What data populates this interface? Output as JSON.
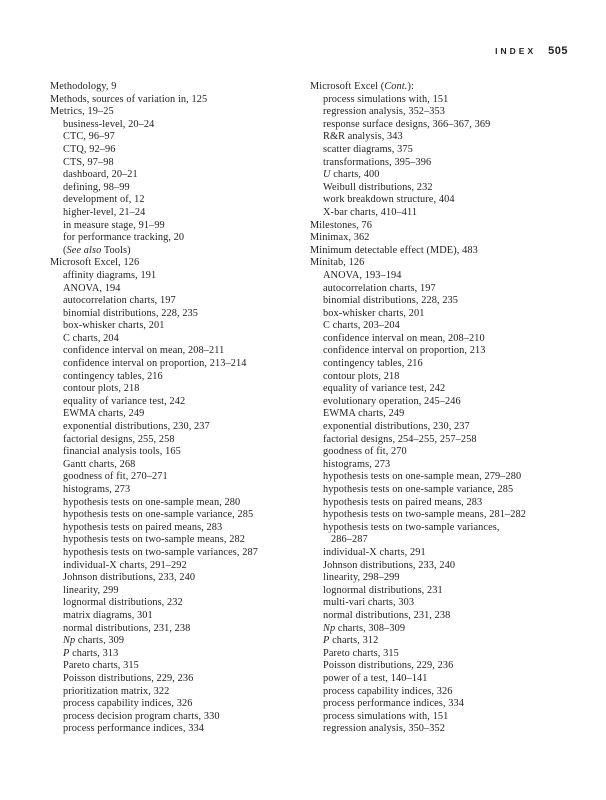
{
  "header": {
    "label": "INDEX",
    "page_number": "505"
  },
  "colors": {
    "text": "#1f1f1f",
    "background": "#ffffff"
  },
  "index": {
    "columns": [
      {
        "entries": [
          {
            "indent": 0,
            "text": "Methodology, 9"
          },
          {
            "indent": 0,
            "text": "Methods, sources of variation in, 125"
          },
          {
            "indent": 0,
            "text": "Metrics, 19–25"
          },
          {
            "indent": 1,
            "text": "business-level, 20–24"
          },
          {
            "indent": 1,
            "text": "CTC, 96–97"
          },
          {
            "indent": 1,
            "text": "CTQ, 92–96"
          },
          {
            "indent": 1,
            "text": "CTS, 97–98"
          },
          {
            "indent": 1,
            "text": "dashboard, 20–21"
          },
          {
            "indent": 1,
            "text": "defining, 98–99"
          },
          {
            "indent": 1,
            "text": "development of, 12"
          },
          {
            "indent": 1,
            "text": "higher-level, 21–24"
          },
          {
            "indent": 1,
            "text": "in measure stage, 91–99"
          },
          {
            "indent": 1,
            "text": "for performance tracking, 20"
          },
          {
            "indent": 1,
            "text": "(*See also* Tools)"
          },
          {
            "indent": 0,
            "text": "Microsoft Excel, 126"
          },
          {
            "indent": 1,
            "text": "affinity diagrams, 191"
          },
          {
            "indent": 1,
            "text": "ANOVA, 194"
          },
          {
            "indent": 1,
            "text": "autocorrelation charts, 197"
          },
          {
            "indent": 1,
            "text": "binomial distributions, 228, 235"
          },
          {
            "indent": 1,
            "text": "box-whisker charts, 201"
          },
          {
            "indent": 1,
            "text": "C charts, 204"
          },
          {
            "indent": 1,
            "text": "confidence interval on mean, 208–211"
          },
          {
            "indent": 1,
            "text": "confidence interval on proportion, 213–214"
          },
          {
            "indent": 1,
            "text": "contingency tables, 216"
          },
          {
            "indent": 1,
            "text": "contour plots, 218"
          },
          {
            "indent": 1,
            "text": "equality of variance test, 242"
          },
          {
            "indent": 1,
            "text": "EWMA charts, 249"
          },
          {
            "indent": 1,
            "text": "exponential distributions, 230, 237"
          },
          {
            "indent": 1,
            "text": "factorial designs, 255, 258"
          },
          {
            "indent": 1,
            "text": "financial analysis tools, 165"
          },
          {
            "indent": 1,
            "text": "Gantt charts, 268"
          },
          {
            "indent": 1,
            "text": "goodness of fit, 270–271"
          },
          {
            "indent": 1,
            "text": "histograms, 273"
          },
          {
            "indent": 1,
            "text": "hypothesis tests on one-sample mean, 280"
          },
          {
            "indent": 1,
            "text": "hypothesis tests on one-sample variance, 285"
          },
          {
            "indent": 1,
            "text": "hypothesis tests on paired means, 283"
          },
          {
            "indent": 1,
            "text": "hypothesis tests on two-sample means, 282"
          },
          {
            "indent": 1,
            "text": "hypothesis tests on two-sample variances, 287"
          },
          {
            "indent": 1,
            "text": "individual-X charts, 291–292"
          },
          {
            "indent": 1,
            "text": "Johnson distributions, 233, 240"
          },
          {
            "indent": 1,
            "text": "linearity, 299"
          },
          {
            "indent": 1,
            "text": "lognormal distributions, 232"
          },
          {
            "indent": 1,
            "text": "matrix diagrams, 301"
          },
          {
            "indent": 1,
            "text": "normal distributions, 231, 238"
          },
          {
            "indent": 1,
            "text": "*Np* charts, 309"
          },
          {
            "indent": 1,
            "text": "*P* charts, 313"
          },
          {
            "indent": 1,
            "text": "Pareto charts, 315"
          },
          {
            "indent": 1,
            "text": "Poisson distributions, 229, 236"
          },
          {
            "indent": 1,
            "text": "prioritization matrix, 322"
          },
          {
            "indent": 1,
            "text": "process capability indices, 326"
          },
          {
            "indent": 1,
            "text": "process decision program charts, 330"
          },
          {
            "indent": 1,
            "text": "process performance indices, 334"
          }
        ]
      },
      {
        "entries": [
          {
            "indent": 0,
            "text": "Microsoft Excel (*Cont.*):"
          },
          {
            "indent": 1,
            "text": "process simulations with, 151"
          },
          {
            "indent": 1,
            "text": "regression analysis, 352–353"
          },
          {
            "indent": 1,
            "text": "response surface designs, 366–367, 369"
          },
          {
            "indent": 1,
            "text": "R&R analysis, 343"
          },
          {
            "indent": 1,
            "text": "scatter diagrams, 375"
          },
          {
            "indent": 1,
            "text": "transformations, 395–396"
          },
          {
            "indent": 1,
            "text": "*U* charts, 400"
          },
          {
            "indent": 1,
            "text": "Weibull distributions, 232"
          },
          {
            "indent": 1,
            "text": "work breakdown structure, 404"
          },
          {
            "indent": 1,
            "text": "X-bar charts, 410–411"
          },
          {
            "indent": 0,
            "text": "Milestones, 76"
          },
          {
            "indent": 0,
            "text": "Minimax, 362"
          },
          {
            "indent": 0,
            "text": "Minimum detectable effect (MDE), 483"
          },
          {
            "indent": 0,
            "text": "Minitab, 126"
          },
          {
            "indent": 1,
            "text": "ANOVA, 193–194"
          },
          {
            "indent": 1,
            "text": "autocorrelation charts, 197"
          },
          {
            "indent": 1,
            "text": "binomial distributions, 228, 235"
          },
          {
            "indent": 1,
            "text": "box-whisker charts, 201"
          },
          {
            "indent": 1,
            "text": "C charts, 203–204"
          },
          {
            "indent": 1,
            "text": "confidence interval on mean, 208–210"
          },
          {
            "indent": 1,
            "text": "confidence interval on proportion, 213"
          },
          {
            "indent": 1,
            "text": "contingency tables, 216"
          },
          {
            "indent": 1,
            "text": "contour plots, 218"
          },
          {
            "indent": 1,
            "text": "equality of variance test, 242"
          },
          {
            "indent": 1,
            "text": "evolutionary operation, 245–246"
          },
          {
            "indent": 1,
            "text": "EWMA charts, 249"
          },
          {
            "indent": 1,
            "text": "exponential distributions, 230, 237"
          },
          {
            "indent": 1,
            "text": "factorial designs, 254–255, 257–258"
          },
          {
            "indent": 1,
            "text": "goodness of fit, 270"
          },
          {
            "indent": 1,
            "text": "histograms, 273"
          },
          {
            "indent": 1,
            "text": "hypothesis tests on one-sample mean, 279–280"
          },
          {
            "indent": 1,
            "text": "hypothesis tests on one-sample variance, 285"
          },
          {
            "indent": 1,
            "text": "hypothesis tests on paired means, 283"
          },
          {
            "indent": 1,
            "text": "hypothesis tests on two-sample means, 281–282"
          },
          {
            "indent": 1,
            "text": "hypothesis tests on two-sample variances,"
          },
          {
            "indent": 2,
            "text": "286–287"
          },
          {
            "indent": 1,
            "text": "individual-X charts, 291"
          },
          {
            "indent": 1,
            "text": "Johnson distributions, 233, 240"
          },
          {
            "indent": 1,
            "text": "linearity, 298–299"
          },
          {
            "indent": 1,
            "text": "lognormal distributions, 231"
          },
          {
            "indent": 1,
            "text": "multi-vari charts, 303"
          },
          {
            "indent": 1,
            "text": "normal distributions, 231, 238"
          },
          {
            "indent": 1,
            "text": "*Np* charts, 308–309"
          },
          {
            "indent": 1,
            "text": "*P* charts, 312"
          },
          {
            "indent": 1,
            "text": "Pareto charts, 315"
          },
          {
            "indent": 1,
            "text": "Poisson distributions, 229, 236"
          },
          {
            "indent": 1,
            "text": "power of a test, 140–141"
          },
          {
            "indent": 1,
            "text": "process capability indices, 326"
          },
          {
            "indent": 1,
            "text": "process performance indices, 334"
          },
          {
            "indent": 1,
            "text": "process simulations with, 151"
          },
          {
            "indent": 1,
            "text": "regression analysis, 350–352"
          }
        ]
      }
    ]
  }
}
